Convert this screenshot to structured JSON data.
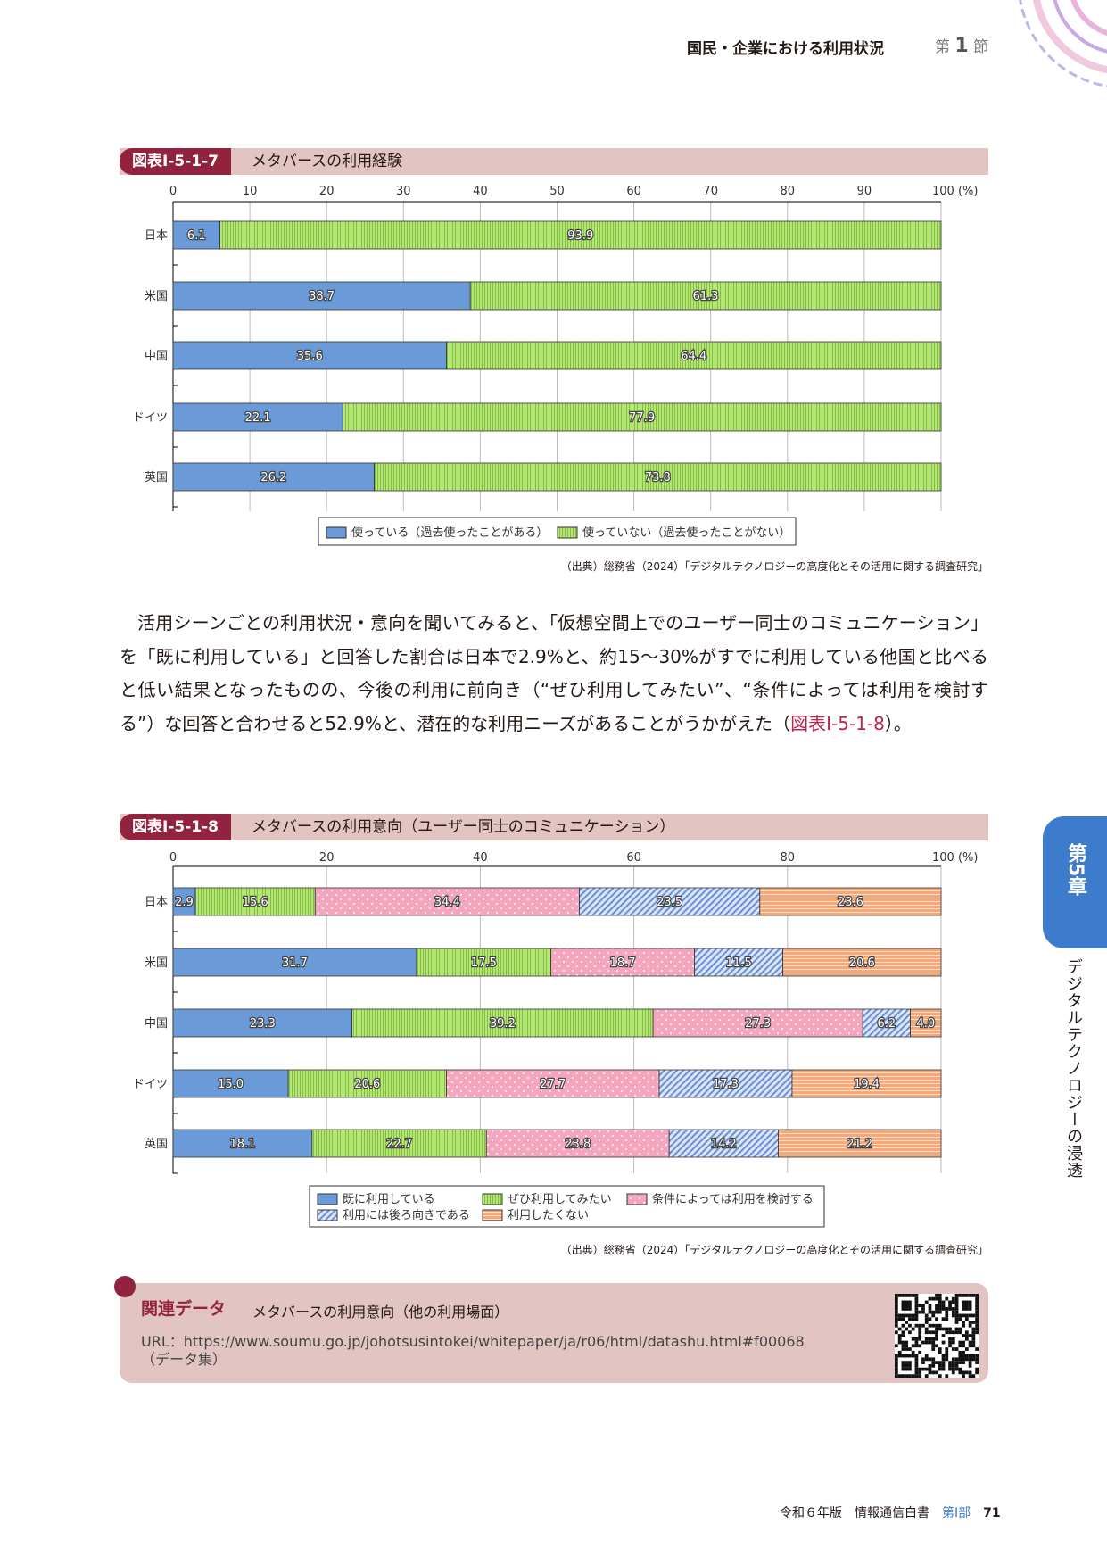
{
  "header": {
    "title": "国民・企業における利用状況",
    "section_prefix": "第",
    "section_num": "1",
    "section_suffix": "節"
  },
  "figure1": {
    "label": "図表Ⅰ-5-1-7",
    "title": "メタバースの利用経験",
    "source": "（出典）総務省（2024）「デジタルテクノロジーの高度化とその活用に関する調査研究」"
  },
  "figure2": {
    "label": "図表Ⅰ-5-1-8",
    "title": "メタバースの利用意向（ユーザー同士のコミュニケーション）",
    "source": "（出典）総務省（2024）「デジタルテクノロジーの高度化とその活用に関する調査研究」"
  },
  "paragraph": {
    "text": "活用シーンごとの利用状況・意向を聞いてみると、「仮想空間上でのユーザー同士のコミュニケーション」を「既に利用している」と回答した割合は日本で2.9%と、約15～30%がすでに利用している他国と比べると低い結果となったものの、今後の利用に前向き（“ぜひ利用してみたい”、“条件によっては利用を検討する”）な回答と合わせると52.9%と、潜在的な利用ニーズがあることがうかがえた（",
    "ref": "図表Ⅰ-5-1-8",
    "end": "）。"
  },
  "related": {
    "heading": "関連データ",
    "title": "メタバースの利用意向（他の利用場面）",
    "url": "URL：https://www.soumu.go.jp/johotsusintokei/whitepaper/ja/r06/html/datashu.html#f00068",
    "note": "（データ集）"
  },
  "side_tab": {
    "chapter": "第5章",
    "title": "デジタルテクノロジーの浸透"
  },
  "footer": {
    "edition": "令和６年版　情報通信白書",
    "part": "第Ⅰ部",
    "page": "71"
  },
  "chart_data": [
    {
      "type": "bar",
      "orientation": "horizontal",
      "stacked": true,
      "xlim": [
        0,
        100
      ],
      "xticks": [
        0,
        10,
        20,
        30,
        40,
        50,
        60,
        70,
        80,
        90,
        100
      ],
      "xunit": "100 (%)",
      "legend_position": "bottom",
      "categories": [
        "日本",
        "米国",
        "中国",
        "ドイツ",
        "英国"
      ],
      "series": [
        {
          "name": "使っている（過去使ったことがある）",
          "color": "#6a9bd8",
          "pattern": "solid",
          "values": [
            6.1,
            38.7,
            35.6,
            22.1,
            26.2
          ]
        },
        {
          "name": "使っていない（過去使ったことがない）",
          "color": "#a8dc6a",
          "pattern": "vstripe",
          "values": [
            93.9,
            61.3,
            64.4,
            77.9,
            73.8
          ]
        }
      ]
    },
    {
      "type": "bar",
      "orientation": "horizontal",
      "stacked": true,
      "xlim": [
        0,
        100
      ],
      "xticks": [
        0,
        20,
        40,
        60,
        80,
        100
      ],
      "xunit": "100 (%)",
      "legend_position": "bottom",
      "categories": [
        "日本",
        "米国",
        "中国",
        "ドイツ",
        "英国"
      ],
      "series": [
        {
          "name": "既に利用している",
          "color": "#6a9bd8",
          "pattern": "solid",
          "values": [
            2.9,
            31.7,
            23.3,
            15.0,
            18.1
          ]
        },
        {
          "name": "ぜひ利用してみたい",
          "color": "#a8dc6a",
          "pattern": "vstripe",
          "values": [
            15.6,
            17.5,
            39.2,
            20.6,
            22.7
          ]
        },
        {
          "name": "条件によっては利用を検討する",
          "color": "#f4a6bf",
          "pattern": "dots",
          "values": [
            34.4,
            18.7,
            27.3,
            27.7,
            23.8
          ]
        },
        {
          "name": "利用には後ろ向きである",
          "color": "#a9c3ee",
          "pattern": "diag",
          "values": [
            23.5,
            11.5,
            6.2,
            17.3,
            14.2
          ]
        },
        {
          "name": "利用したくない",
          "color": "#f6a878",
          "pattern": "hstripe",
          "values": [
            23.6,
            20.6,
            4.0,
            19.4,
            21.2
          ]
        }
      ]
    }
  ]
}
